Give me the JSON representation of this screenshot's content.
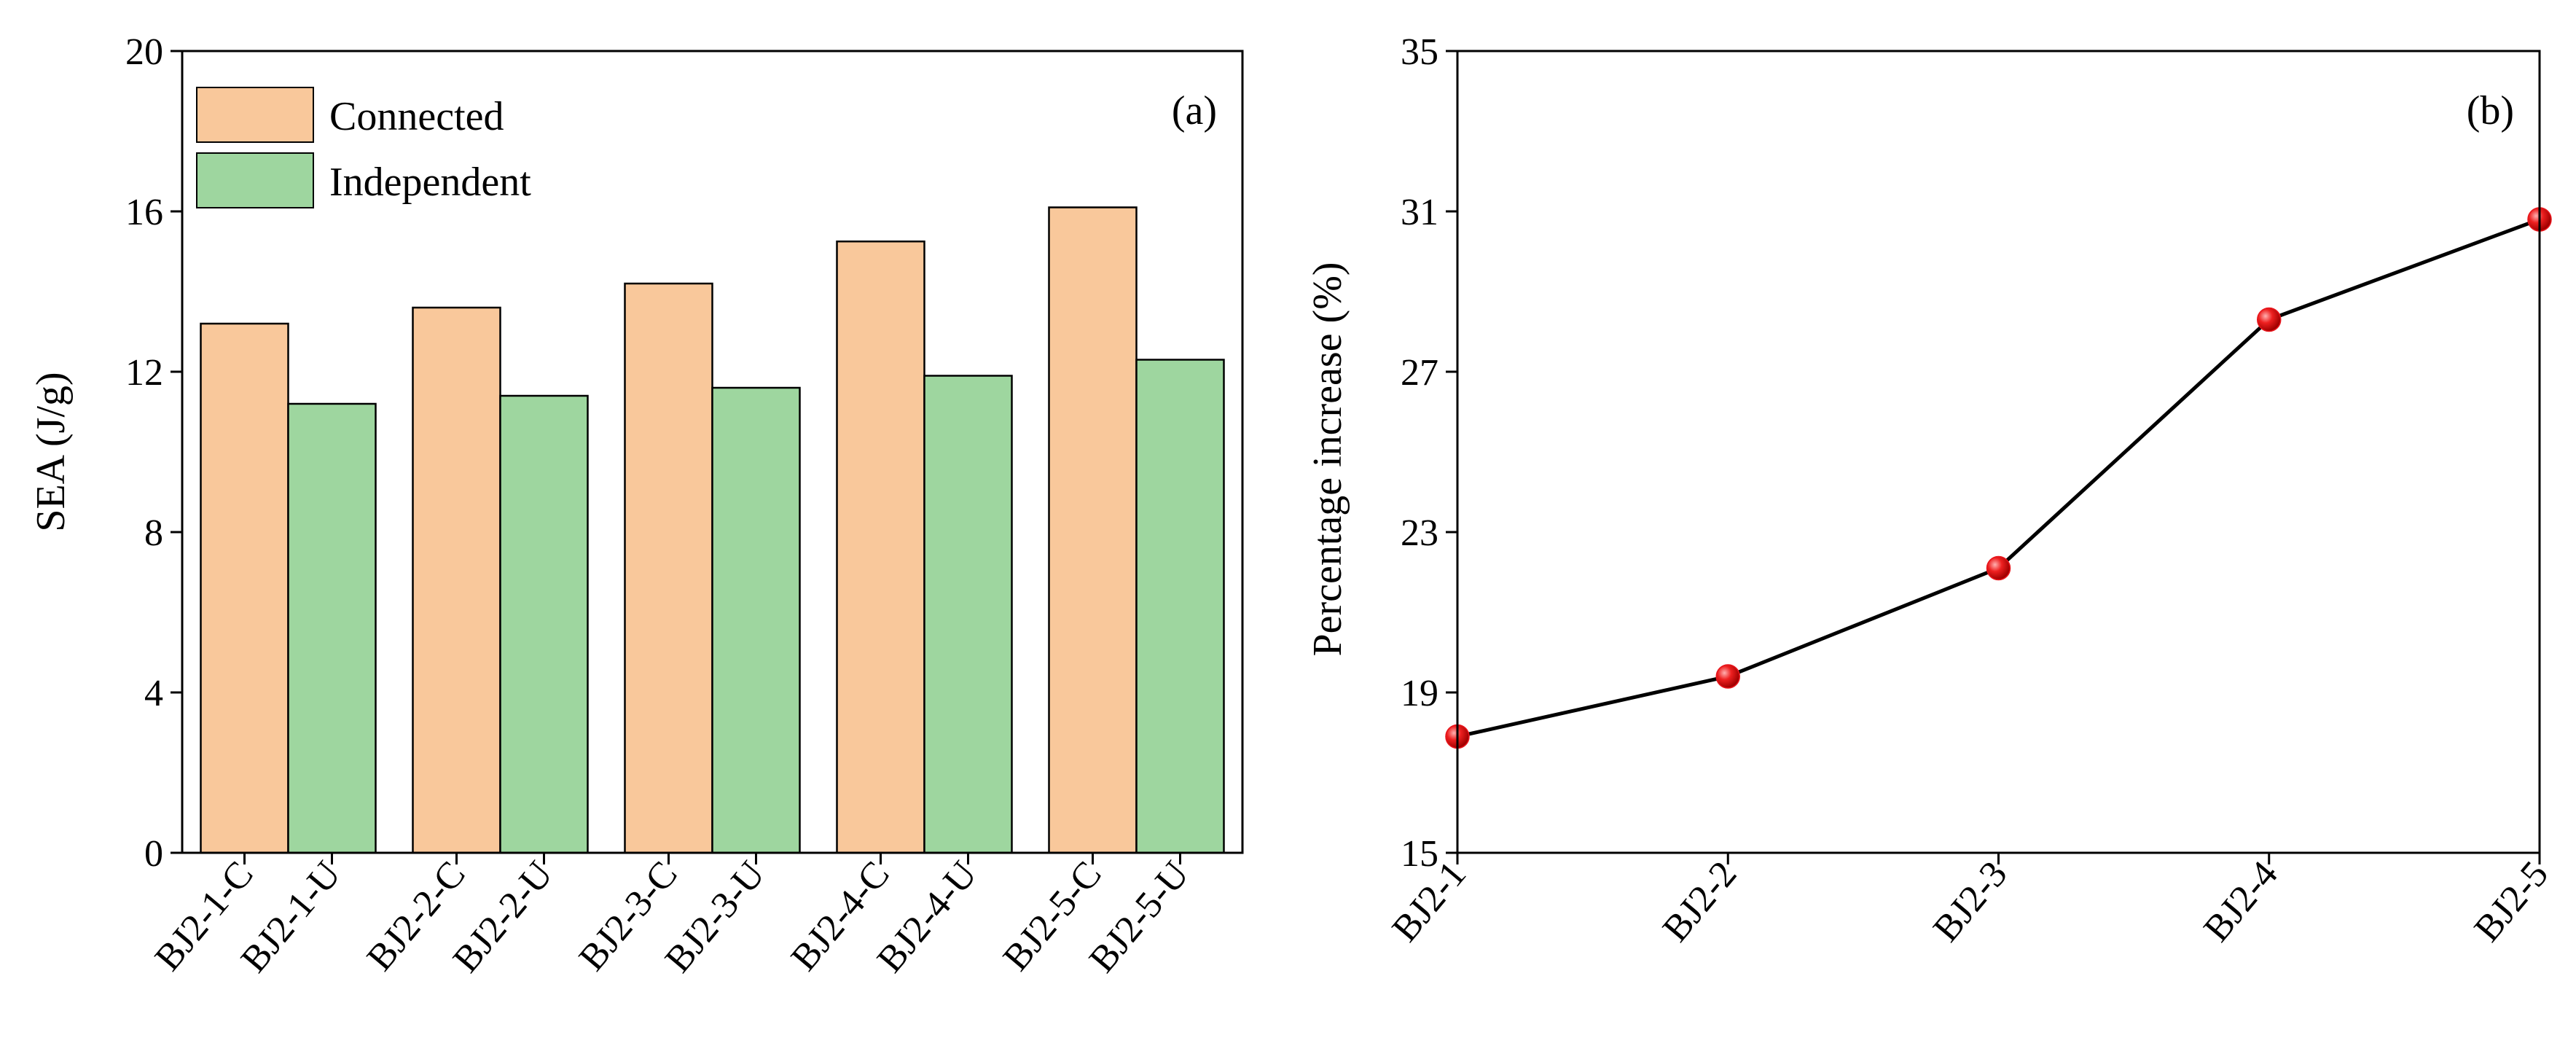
{
  "chart_data": [
    {
      "type": "bar",
      "panel_label": "(a)",
      "xlabel": "",
      "ylabel": "SEA (J/g)",
      "ylim": [
        0,
        20
      ],
      "yticks": [
        "0",
        "4",
        "8",
        "12",
        "16",
        "20"
      ],
      "legend_position": "top-left",
      "groups": [
        "BJ2-1",
        "BJ2-2",
        "BJ2-3",
        "BJ2-4",
        "BJ2-5"
      ],
      "tick_labels": [
        "BJ2-1-C",
        "BJ2-1-U",
        "BJ2-2-C",
        "BJ2-2-U",
        "BJ2-3-C",
        "BJ2-3-U",
        "BJ2-4-C",
        "BJ2-4-U",
        "BJ2-5-C",
        "BJ2-5-U"
      ],
      "series": [
        {
          "name": "Connected",
          "color": "#f9c89b",
          "values": [
            13.2,
            13.6,
            14.2,
            15.25,
            16.1
          ]
        },
        {
          "name": "Independent",
          "color": "#9ed69f",
          "values": [
            11.2,
            11.4,
            11.6,
            11.9,
            12.3
          ]
        }
      ]
    },
    {
      "type": "line",
      "panel_label": "(b)",
      "xlabel": "",
      "ylabel": "Percentage increase  (%)",
      "ylim": [
        15,
        35
      ],
      "yticks": [
        "15",
        "19",
        "23",
        "27",
        "31",
        "35"
      ],
      "categories": [
        "BJ2-1",
        "BJ2-2",
        "BJ2-3",
        "BJ2-4",
        "BJ2-5"
      ],
      "values": [
        17.9,
        19.4,
        22.1,
        28.3,
        30.8
      ],
      "line_color": "#000000",
      "marker_color": "#e8141b"
    }
  ]
}
